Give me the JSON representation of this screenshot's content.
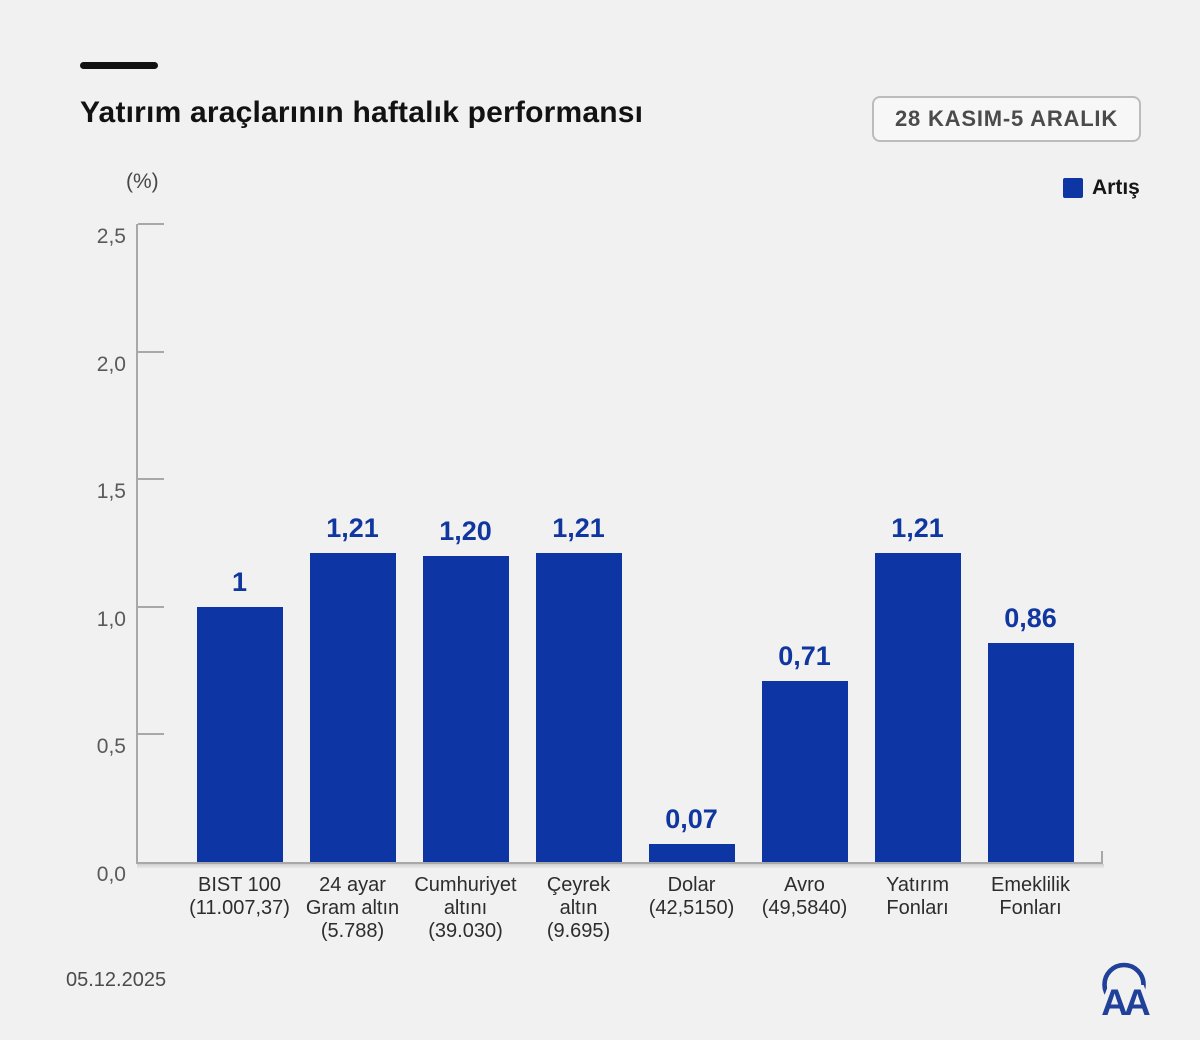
{
  "header": {
    "date_range": "28 KASIM-5 ARALIK"
  },
  "chart_data": {
    "type": "bar",
    "title": "Yatırım araçlarının haftalık performansı",
    "ylabel": "(%)",
    "series_name": "Artış",
    "legend_position": "top-right",
    "grid": false,
    "ylim": [
      0,
      2.5
    ],
    "ytick_values": [
      0,
      0.5,
      1,
      1.5,
      2,
      2.5
    ],
    "ytick_labels": [
      "0,0",
      "0,5",
      "1,0",
      "1,5",
      "2,0",
      "2,5"
    ],
    "categories": [
      [
        "BIST 100",
        "(11.007,37)"
      ],
      [
        "24 ayar",
        "Gram altın",
        "(5.788)"
      ],
      [
        "Cumhuriyet",
        "altını",
        "(39.030)"
      ],
      [
        "Çeyrek",
        "altın",
        "(9.695)"
      ],
      [
        "Dolar",
        "(42,5150)"
      ],
      [
        "Avro",
        "(49,5840)"
      ],
      [
        "Yatırım",
        "Fonları"
      ],
      [
        "Emeklilik",
        "Fonları"
      ]
    ],
    "values": [
      1,
      1.21,
      1.2,
      1.21,
      0.07,
      0.71,
      1.21,
      0.86
    ],
    "value_labels": [
      "1",
      "1,21",
      "1,20",
      "1,21",
      "0,07",
      "0,71",
      "1,21",
      "0,86"
    ],
    "bar_color": "#0d35a3",
    "value_label_color": "#10369f",
    "axis_color": "#a8a8a8"
  },
  "footer": {
    "date": "05.12.2025",
    "logo": "AA"
  }
}
